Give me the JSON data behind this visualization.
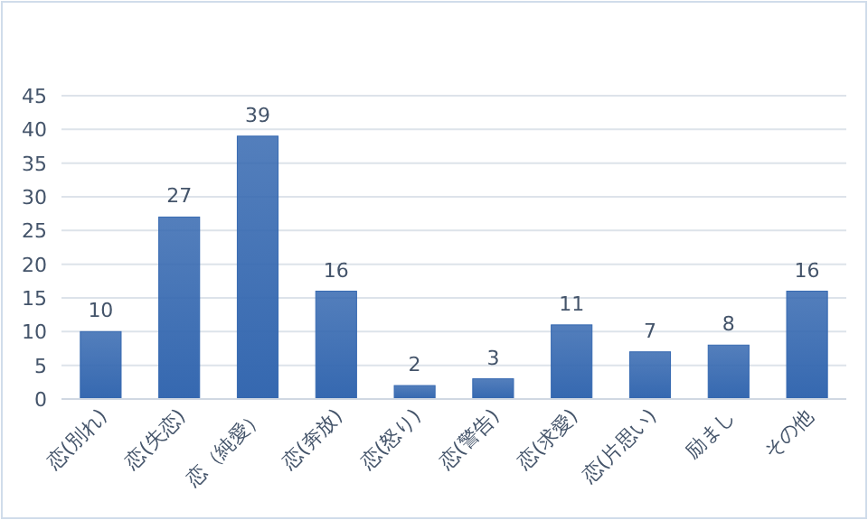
{
  "chart_data": {
    "type": "bar",
    "categories": [
      "恋(別れ)",
      "恋(失恋)",
      "恋（純愛）",
      "恋(奔放)",
      "恋(怒り)",
      "恋(警告)",
      "恋(求愛)",
      "恋(片思い)",
      "励まし",
      "その他"
    ],
    "values": [
      10,
      27,
      39,
      16,
      2,
      3,
      11,
      7,
      8,
      16
    ],
    "color": "#3568b0",
    "ylim": [
      0,
      45
    ],
    "yticks": [
      0,
      5,
      10,
      15,
      20,
      25,
      30,
      35,
      40,
      45
    ],
    "grid": "y",
    "data_labels": true
  }
}
